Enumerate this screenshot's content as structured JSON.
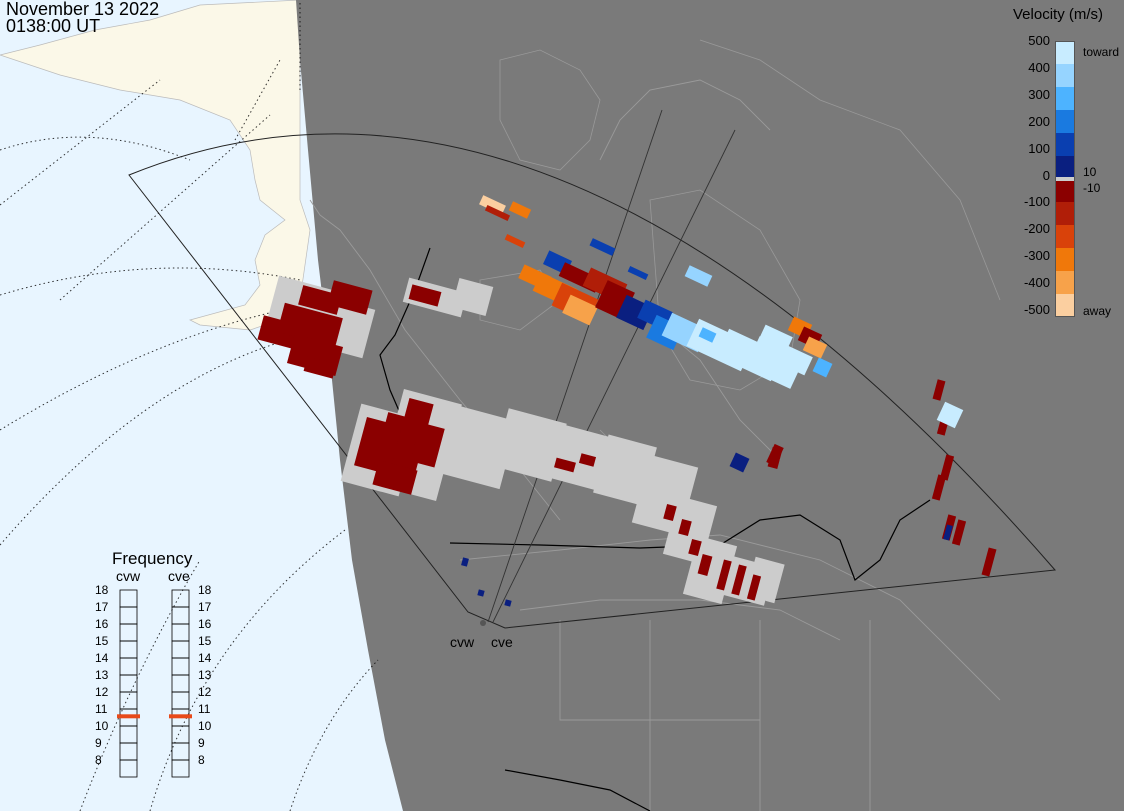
{
  "header": {
    "date": "November 13 2022",
    "time": "0138:00 UT"
  },
  "legend": {
    "title": "Velocity (m/s)",
    "ticks": [
      "500",
      "400",
      "300",
      "200",
      "100",
      "0",
      "-100",
      "-200",
      "-300",
      "-400",
      "-500"
    ],
    "inner_labels": [
      "10",
      "-10"
    ],
    "toward_label": "toward",
    "away_label": "away",
    "colors": [
      "#c8ecff",
      "#96d4ff",
      "#4db3ff",
      "#1a7ae0",
      "#0a3fb0",
      "#0a1f80",
      "#8b0000",
      "#b01e08",
      "#d9420a",
      "#f0780a",
      "#f7a24a",
      "#fbcfa0"
    ]
  },
  "frequency": {
    "title": "Frequency",
    "radars": [
      {
        "name": "cvw",
        "selected_mhz": 10.6
      },
      {
        "name": "cve",
        "selected_mhz": 10.6
      }
    ],
    "levels": [
      "18",
      "17",
      "16",
      "15",
      "14",
      "13",
      "12",
      "11",
      "10",
      "9",
      "8"
    ]
  },
  "map": {
    "radar_sites": [
      "cvw",
      "cve"
    ],
    "colors": {
      "ocean": "#e8f5ff",
      "land_day": "#fbf8e8",
      "night": "#7a7a7a",
      "ground_scatter": "#cccccc"
    }
  }
}
